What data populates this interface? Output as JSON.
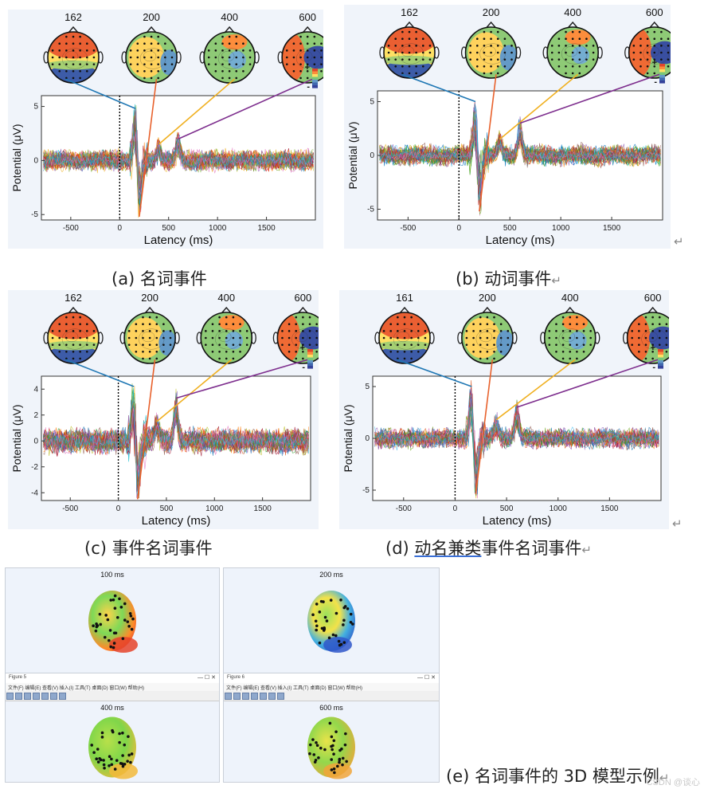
{
  "chart_data": [
    {
      "type": "line",
      "panel": "a",
      "title": "",
      "xlabel": "Latency (ms)",
      "ylabel": "Potential (μV)",
      "xlim": [
        -800,
        2000
      ],
      "ylim": [
        -5.5,
        6
      ],
      "xticks": [
        "-500",
        "0",
        "500",
        "1000",
        "1500"
      ],
      "yticks": [
        "5",
        "0",
        "-5"
      ],
      "ytick_values": [
        5,
        0,
        -5
      ],
      "topo_latencies": [
        "162",
        "200",
        "400",
        "600"
      ],
      "peaks": [
        {
          "x": 162,
          "y": 4.8
        },
        {
          "x": 200,
          "y": -5.2
        },
        {
          "x": 400,
          "y": 1.5
        },
        {
          "x": 600,
          "y": 2.0
        }
      ],
      "colorbar_labels": [
        "+",
        "-"
      ]
    },
    {
      "type": "line",
      "panel": "b",
      "title": "",
      "xlabel": "Latency (ms)",
      "ylabel": "Potential (μV)",
      "xlim": [
        -800,
        2000
      ],
      "ylim": [
        -6,
        6
      ],
      "xticks": [
        "-500",
        "0",
        "500",
        "1000",
        "1500"
      ],
      "yticks": [
        "5",
        "0",
        "-5"
      ],
      "ytick_values": [
        5,
        0,
        -5
      ],
      "topo_latencies": [
        "162",
        "200",
        "400",
        "600"
      ],
      "peaks": [
        {
          "x": 162,
          "y": 5.0
        },
        {
          "x": 200,
          "y": -5.2
        },
        {
          "x": 400,
          "y": 1.5
        },
        {
          "x": 600,
          "y": 3.0
        }
      ],
      "colorbar_labels": [
        "+",
        "-"
      ]
    },
    {
      "type": "line",
      "panel": "c",
      "title": "",
      "xlabel": "Latency (ms)",
      "ylabel": "Potential (μV)",
      "xlim": [
        -800,
        2000
      ],
      "ylim": [
        -4.6,
        5
      ],
      "xticks": [
        "-500",
        "0",
        "500",
        "1000",
        "1500"
      ],
      "yticks": [
        "4",
        "2",
        "0",
        "-2",
        "-4"
      ],
      "ytick_values": [
        4,
        2,
        0,
        -2,
        -4
      ],
      "topo_latencies": [
        "162",
        "200",
        "400",
        "600"
      ],
      "peaks": [
        {
          "x": 162,
          "y": 4.2
        },
        {
          "x": 200,
          "y": -4.5
        },
        {
          "x": 400,
          "y": 1.5
        },
        {
          "x": 600,
          "y": 3.3
        }
      ],
      "colorbar_labels": [
        "+",
        "-"
      ]
    },
    {
      "type": "line",
      "panel": "d",
      "title": "",
      "xlabel": "Latency (ms)",
      "ylabel": "Potential (μV)",
      "xlim": [
        -800,
        2000
      ],
      "ylim": [
        -6,
        6
      ],
      "xticks": [
        "-500",
        "0",
        "500",
        "1000",
        "1500"
      ],
      "yticks": [
        "5",
        "0",
        "-5"
      ],
      "ytick_values": [
        5,
        0,
        -5
      ],
      "topo_latencies": [
        "161",
        "200",
        "400",
        "600"
      ],
      "peaks": [
        {
          "x": 161,
          "y": 5.0
        },
        {
          "x": 200,
          "y": -5.4
        },
        {
          "x": 400,
          "y": 1.8
        },
        {
          "x": 600,
          "y": 3.0
        }
      ],
      "colorbar_labels": [
        "+",
        "-"
      ]
    }
  ],
  "captions": {
    "a": "(a)  名词事件",
    "b": "(b)  动词事件",
    "c": "(c)  事件名词事件",
    "d_prefix": "(d)  ",
    "d_underlined": "动名兼类",
    "d_suffix": "事件名词事件",
    "e": "(e)  名词事件的 3D 模型示例",
    "return_mark": "↵"
  },
  "figures3d": [
    {
      "title": "100 ms",
      "window_title": "",
      "menu": ""
    },
    {
      "title": "200 ms",
      "window_title": "",
      "menu": ""
    },
    {
      "title": "400 ms",
      "window_title": "Figure 5",
      "menu": "文件(F)  编辑(E)  查看(V)  插入(I)  工具(T)  桌面(D)  窗口(W)  帮助(H)"
    },
    {
      "title": "600 ms",
      "window_title": "Figure 6",
      "menu": "文件(F)  编辑(E)  查看(V)  插入(I)  工具(T)  桌面(D)  窗口(W)  帮助(H)"
    }
  ],
  "watermark": "CSDN @谈心",
  "colors": {
    "panel_bg": "#f0f4fa",
    "line_blue": "#1f77b4",
    "line_orange": "#e8612c",
    "line_yellow": "#f0b020",
    "line_purple": "#7e2f8e",
    "topo_red": "#d73027",
    "topo_blue": "#3b4cc0"
  }
}
